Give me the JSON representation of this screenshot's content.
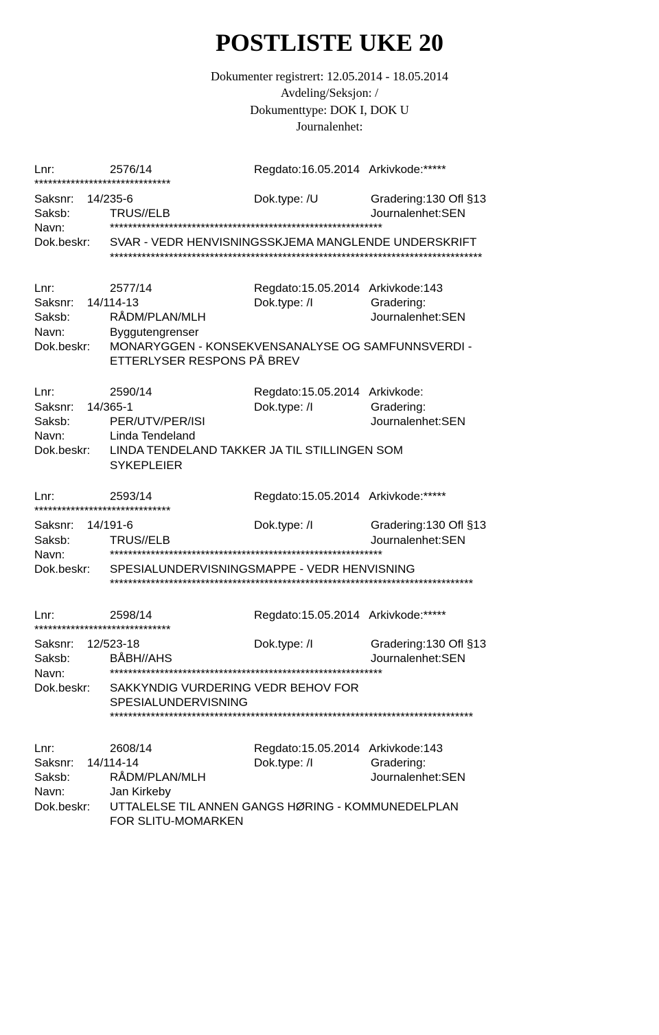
{
  "header": {
    "title": "POSTLISTE UKE 20",
    "line1": "Dokumenter registrert: 12.05.2014 - 18.05.2014",
    "line2": "Avdeling/Seksjon: /",
    "line3": "Dokumenttype: DOK I, DOK U",
    "line4": "Journalenhet:"
  },
  "labels": {
    "lnr": "Lnr:",
    "saksnr": "Saksnr:",
    "saksb": "Saksb:",
    "navn": "Navn:",
    "dokbeskr": "Dok.beskr:",
    "doktype": "Dok.type:",
    "regdato": "Regdato:",
    "arkivkode": "Arkivkode:",
    "gradering": "Gradering:",
    "journalenhet": "Journalenhet:"
  },
  "entries": [
    {
      "lnr": "2576/14",
      "regdato": "16.05.2014",
      "arkivkode": "*****",
      "stars_pre": "******************************",
      "saksnr": "14/235-6",
      "doktype": "/U",
      "gradering": "130 Ofl §13",
      "saksb": "TRUS//ELB",
      "journalenhet": "SEN",
      "navn": "************************************************************",
      "beskr": "SVAR - VEDR HENVISNINGSSKJEMA MANGLENDE UNDERSKRIFT",
      "stars_post": "**********************************************************************************"
    },
    {
      "lnr": "2577/14",
      "regdato": "15.05.2014",
      "arkivkode": "143",
      "saksnr": "14/114-13",
      "doktype": "/I",
      "gradering": "",
      "saksb": "RÅDM/PLAN/MLH",
      "journalenhet": "SEN",
      "navn": "Byggutengrenser",
      "beskr": "MONARYGGEN - KONSEKVENSANALYSE OG SAMFUNNSVERDI -",
      "beskr2": "ETTERLYSER RESPONS PÅ BREV"
    },
    {
      "lnr": "2590/14",
      "regdato": "15.05.2014",
      "arkivkode": "",
      "saksnr": "14/365-1",
      "doktype": "/I",
      "gradering": "",
      "saksb": "PER/UTV/PER/ISI",
      "journalenhet": "SEN",
      "navn": "Linda Tendeland",
      "beskr": "LINDA TENDELAND TAKKER JA TIL STILLINGEN SOM",
      "beskr2": "SYKEPLEIER"
    },
    {
      "lnr": "2593/14",
      "regdato": "15.05.2014",
      "arkivkode": "*****",
      "stars_pre": "******************************",
      "saksnr": "14/191-6",
      "doktype": "/I",
      "gradering": "130 Ofl §13",
      "saksb": "TRUS//ELB",
      "journalenhet": "SEN",
      "navn": "************************************************************",
      "beskr": "SPESIALUNDERVISNINGSMAPPE - VEDR HENVISNING",
      "stars_post": "********************************************************************************"
    },
    {
      "lnr": "2598/14",
      "regdato": "15.05.2014",
      "arkivkode": "*****",
      "stars_pre": "******************************",
      "saksnr": "12/523-18",
      "doktype": "/I",
      "gradering": "130 Ofl §13",
      "saksb": "BÅBH//AHS",
      "journalenhet": "SEN",
      "navn": "************************************************************",
      "beskr": "SAKKYNDIG VURDERING VEDR BEHOV FOR",
      "beskr2": "SPESIALUNDERVISNING",
      "stars_post": "********************************************************************************"
    },
    {
      "lnr": "2608/14",
      "regdato": "15.05.2014",
      "arkivkode": "143",
      "saksnr": "14/114-14",
      "doktype": "/I",
      "gradering": "",
      "saksb": "RÅDM/PLAN/MLH",
      "journalenhet": "SEN",
      "navn": "Jan Kirkeby",
      "beskr": "UTTALELSE TIL ANNEN GANGS HØRING - KOMMUNEDELPLAN",
      "beskr2": "FOR SLITU-MOMARKEN"
    }
  ]
}
